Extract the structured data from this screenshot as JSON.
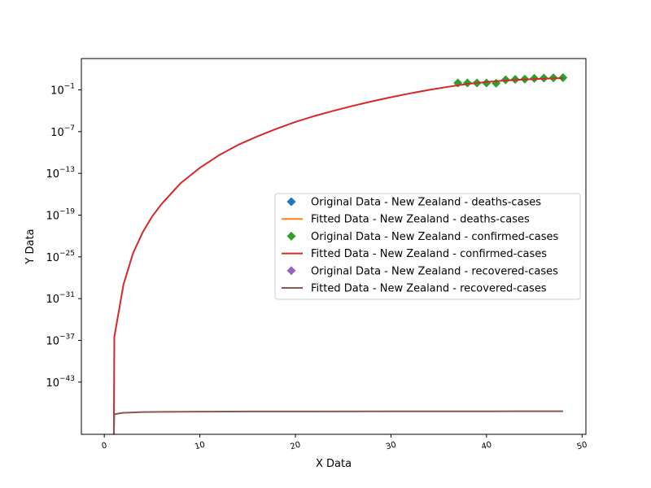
{
  "chart_data": {
    "type": "line",
    "title": "",
    "xlabel": "X Data",
    "ylabel": "Y Data",
    "x_scale": "linear",
    "y_scale": "log",
    "xlim": [
      -2.4,
      50.4
    ],
    "ylim_exponent": [
      -50.5,
      3.5
    ],
    "grid": false,
    "legend_placement": "center-right",
    "x_ticks": [
      {
        "value": 0,
        "label": "0"
      },
      {
        "value": 10,
        "label": "10"
      },
      {
        "value": 20,
        "label": "20"
      },
      {
        "value": 30,
        "label": "30"
      },
      {
        "value": 40,
        "label": "40"
      },
      {
        "value": 50,
        "label": "50"
      }
    ],
    "y_ticks": [
      {
        "exp": -1,
        "label": "−1"
      },
      {
        "exp": -7,
        "label": "−7"
      },
      {
        "exp": -13,
        "label": "−13"
      },
      {
        "exp": -19,
        "label": "−19"
      },
      {
        "exp": -25,
        "label": "−25"
      },
      {
        "exp": -31,
        "label": "−31"
      },
      {
        "exp": -37,
        "label": "−37"
      },
      {
        "exp": -43,
        "label": "−43"
      }
    ],
    "series": [
      {
        "name": "Original Data - New Zealand - deaths-cases",
        "kind": "scatter",
        "color": "#1f77b4",
        "x": [],
        "y_exp": []
      },
      {
        "name": "Fitted Data - New Zealand - deaths-cases",
        "kind": "line",
        "color": "#ff7f0e",
        "x": [],
        "y_exp": []
      },
      {
        "name": "Original Data - New Zealand - confirmed-cases",
        "kind": "scatter",
        "color": "#2ca02c",
        "x": [
          37,
          38,
          39,
          40,
          41,
          42,
          43,
          44,
          45,
          46,
          47,
          48
        ],
        "y_exp": [
          0.0,
          0.0,
          0.0,
          0.0,
          -0.05,
          0.45,
          0.5,
          0.55,
          0.65,
          0.7,
          0.72,
          0.75
        ]
      },
      {
        "name": "Fitted Data - New Zealand - confirmed-cases",
        "kind": "line",
        "color": "#d62728",
        "x": [
          1,
          1.05,
          2,
          3,
          4,
          5,
          6,
          8,
          10,
          12,
          14,
          16,
          18,
          20,
          22,
          24,
          26,
          28,
          30,
          32,
          34,
          36,
          38,
          40,
          42,
          44,
          46,
          48
        ],
        "y_exp": [
          -50.5,
          -36.5,
          -29,
          -24.5,
          -21.5,
          -19.2,
          -17.4,
          -14.4,
          -12.2,
          -10.4,
          -8.9,
          -7.7,
          -6.6,
          -5.6,
          -4.75,
          -4.0,
          -3.3,
          -2.65,
          -2.05,
          -1.5,
          -1.0,
          -0.55,
          -0.15,
          0.15,
          0.35,
          0.5,
          0.6,
          0.7
        ]
      },
      {
        "name": "Original Data - New Zealand - recovered-cases",
        "kind": "scatter",
        "color": "#9467bd",
        "x": [],
        "y_exp": []
      },
      {
        "name": "Fitted Data - New Zealand - recovered-cases",
        "kind": "line",
        "color": "#8c564b",
        "x": [
          1,
          1.05,
          2,
          3,
          4,
          6,
          8,
          10,
          15,
          20,
          30,
          40,
          48
        ],
        "y_exp": [
          -50.5,
          -47.6,
          -47.4,
          -47.35,
          -47.3,
          -47.27,
          -47.25,
          -47.24,
          -47.22,
          -47.21,
          -47.2,
          -47.19,
          -47.18
        ]
      }
    ]
  }
}
